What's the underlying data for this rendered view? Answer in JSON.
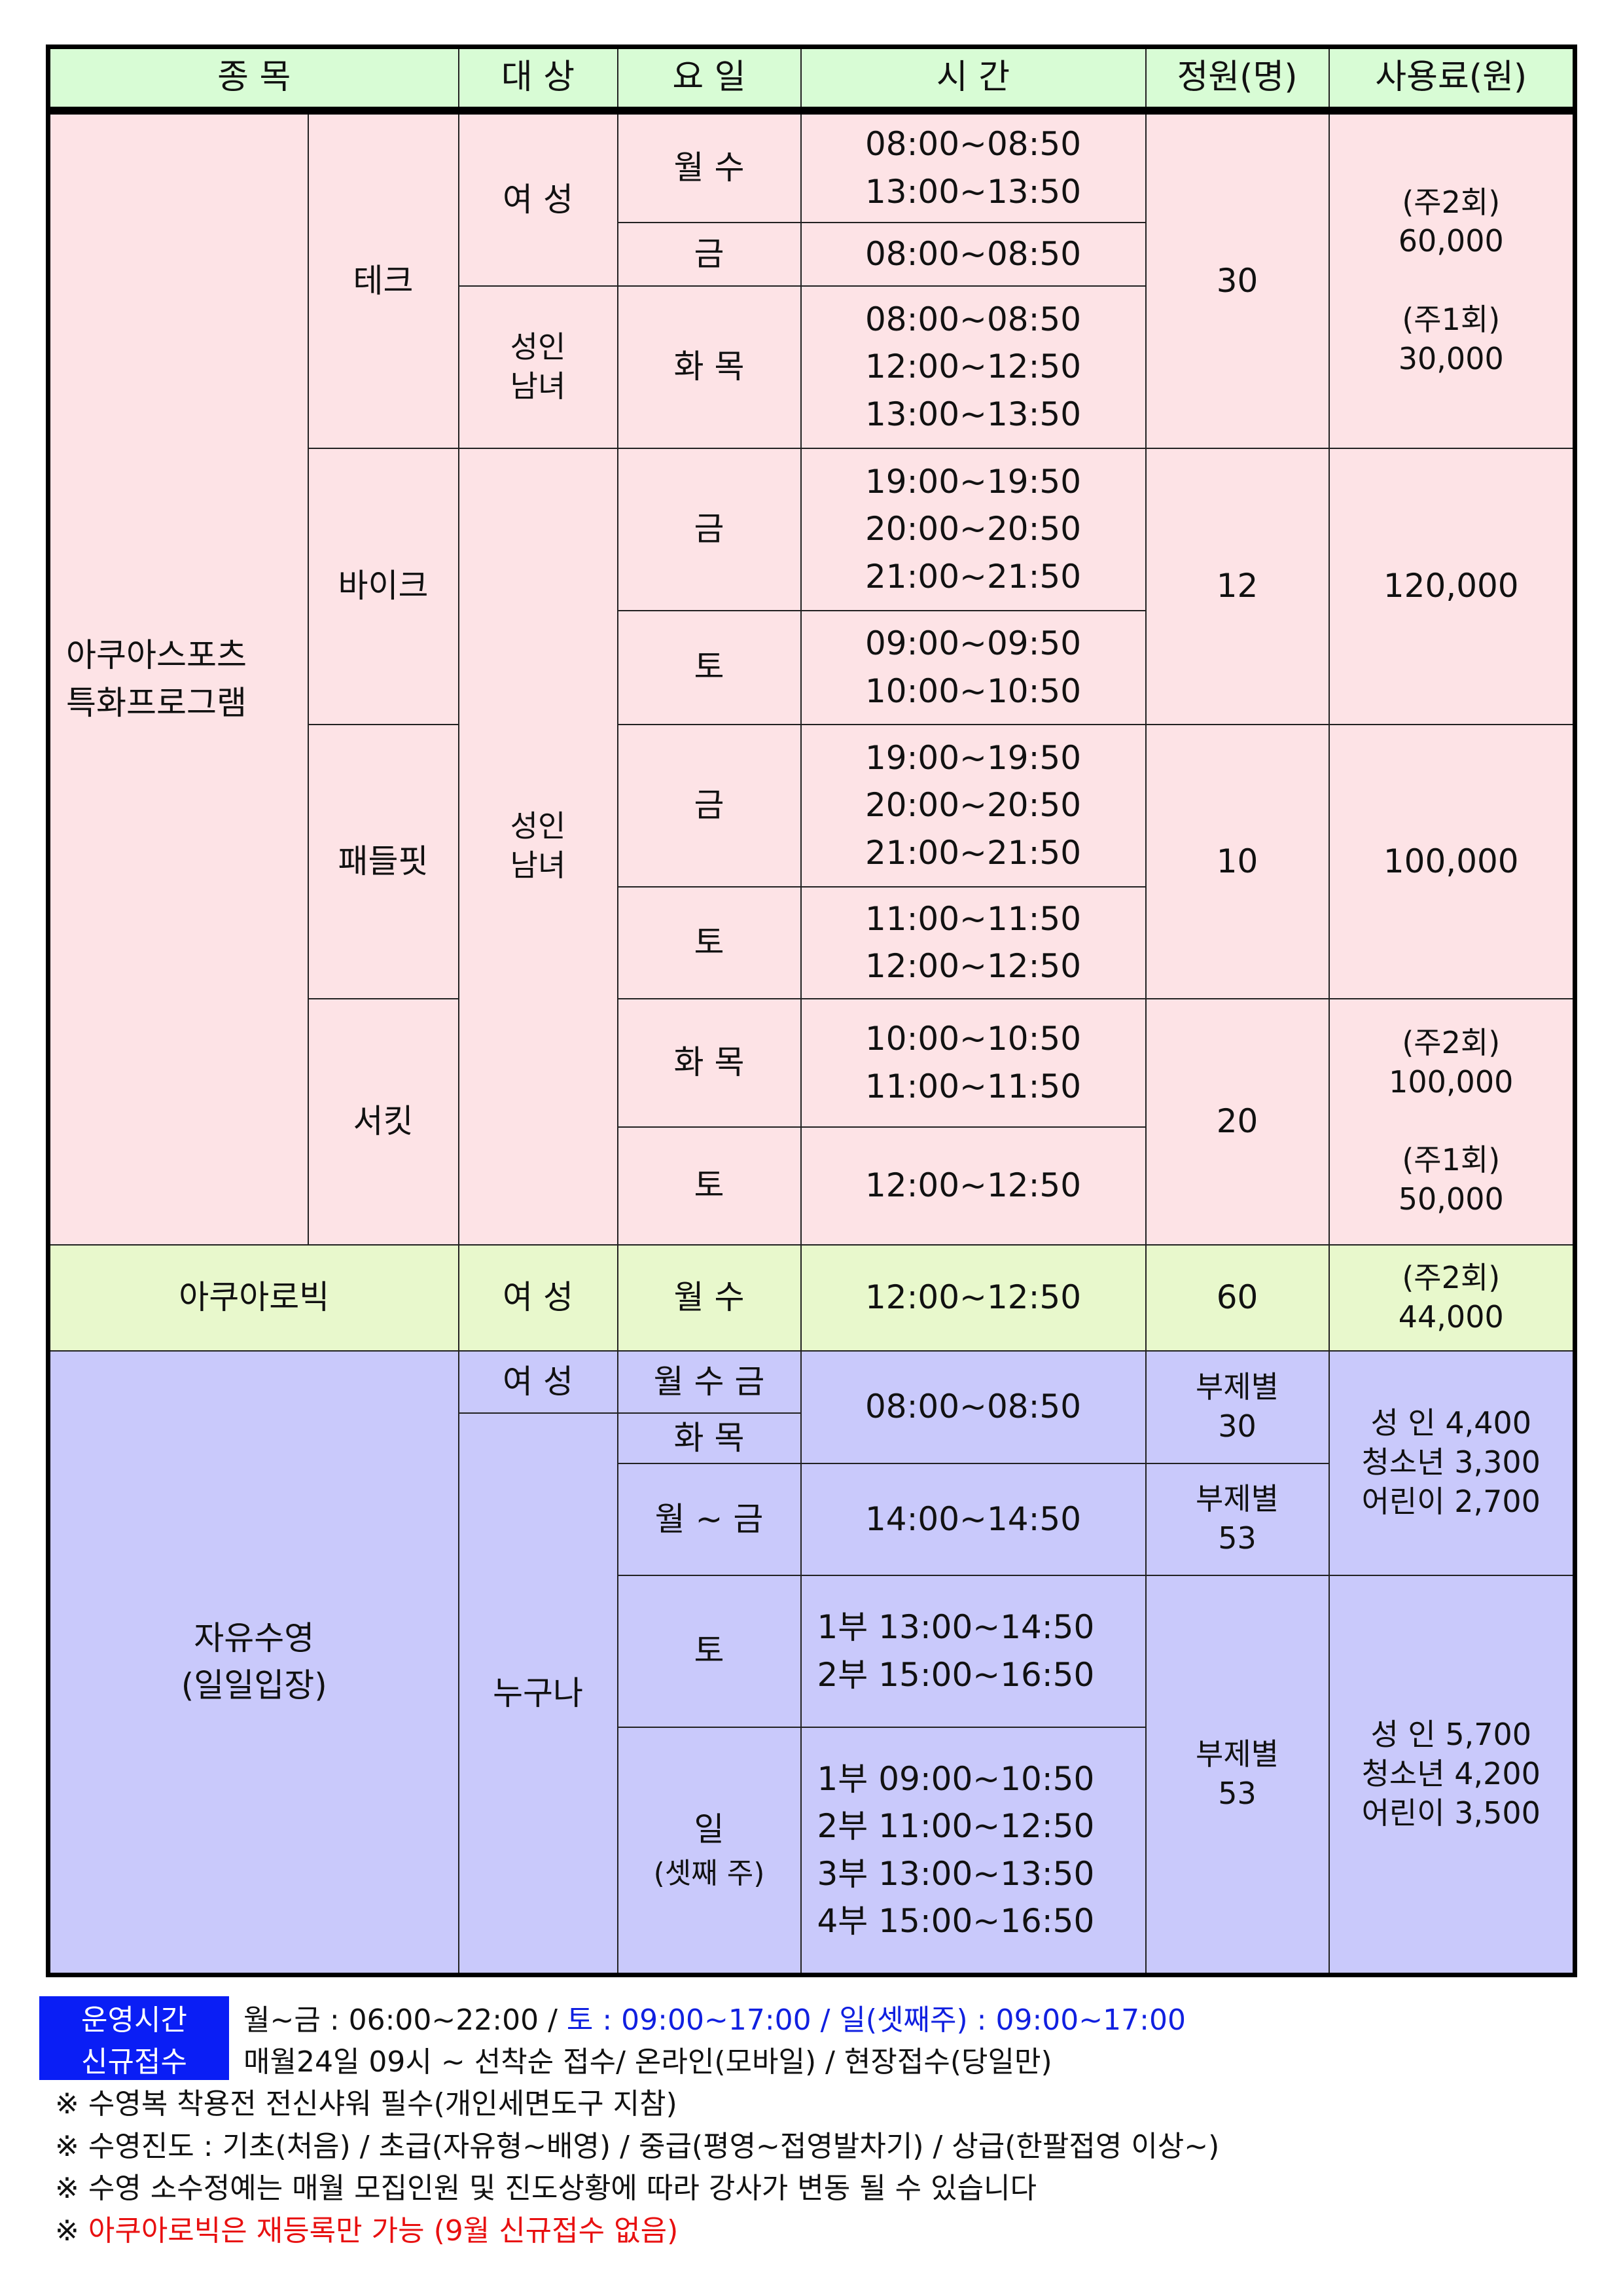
{
  "header": {
    "event": "종   목",
    "target": "대  상",
    "day": "요  일",
    "time": "시  간",
    "capacity": "정원(명)",
    "fee": "사용료(원)"
  },
  "aqua_sports": {
    "name": "아쿠아스포츠\n특화프로그램",
    "tech": {
      "name": "테크",
      "women": "여 성",
      "adults": "성인\n남녀",
      "rows": [
        {
          "day": "월  수",
          "time": "08:00~08:50\n13:00~13:50"
        },
        {
          "day": "금",
          "time": "08:00~08:50"
        },
        {
          "day": "화  목",
          "time": "08:00~08:50\n12:00~12:50\n13:00~13:50"
        }
      ],
      "capacity": "30",
      "fee": "(주2회)\n60,000\n\n(주1회)\n30,000"
    },
    "adults": "성인\n남녀",
    "bike": {
      "name": "바이크",
      "rows": [
        {
          "day": "금",
          "time": "19:00~19:50\n20:00~20:50\n21:00~21:50"
        },
        {
          "day": "토",
          "time": "09:00~09:50\n10:00~10:50"
        }
      ],
      "capacity": "12",
      "fee": "120,000"
    },
    "paddle": {
      "name": "패들핏",
      "rows": [
        {
          "day": "금",
          "time": "19:00~19:50\n20:00~20:50\n21:00~21:50"
        },
        {
          "day": "토",
          "time": "11:00~11:50\n12:00~12:50"
        }
      ],
      "capacity": "10",
      "fee": "100,000"
    },
    "circuit": {
      "name": "서킷",
      "rows": [
        {
          "day": "화  목",
          "time": "10:00~10:50\n11:00~11:50"
        },
        {
          "day": "토",
          "time": "12:00~12:50"
        }
      ],
      "capacity": "20",
      "fee": "(주2회)\n100,000\n\n(주1회)\n50,000"
    }
  },
  "aqua_aerobic": {
    "name": "아쿠아로빅",
    "target": "여 성",
    "day": "월  수",
    "time": "12:00~12:50",
    "capacity": "60",
    "fee": "(주2회)\n44,000"
  },
  "free_swim": {
    "name": "자유수영\n(일일입장)",
    "women": "여 성",
    "anyone": "누구나",
    "weekday": {
      "day_women": "월 수 금",
      "day_anyone": "화   목",
      "time_morning": "08:00~08:50",
      "cap_morning": "부제별\n30",
      "day_afternoon": "월 ~ 금",
      "time_afternoon": "14:00~14:50",
      "cap_afternoon": "부제별\n53",
      "fee": "성   인 4,400\n청소년 3,300\n어린이 2,700"
    },
    "weekend": {
      "sat_day": "토",
      "sat_time": "1부  13:00~14:50\n2부  15:00~16:50",
      "sun_day": "일",
      "sun_note": "(셋째 주)",
      "sun_time": "1부  09:00~10:50\n2부  11:00~12:50\n3부  13:00~13:50\n4부  15:00~16:50",
      "capacity": "부제별\n53",
      "fee": "성   인 5,700\n청소년 4,200\n어린이 3,500"
    }
  },
  "footer": {
    "hours_label": "운영시간",
    "hours_weekday": "월~금 : 06:00~22:00 / ",
    "hours_weekend": "토 : 09:00~17:00 / 일(셋째주) : 09:00~17:00",
    "register_label": "신규접수",
    "register_text": "매월24일 09시 ~ 선착순 접수/ 온라인(모바일) / 현장접수(당일만)",
    "notes": [
      "※ 수영복 착용전 전신샤워 필수(개인세면도구 지참)",
      "※ 수영진도 : 기초(처음) / 초급(자유형~배영) / 중급(평영~접영발차기) / 상급(한팔접영 이상~)",
      "※ 수영 소수정예는 매월 모집인원 및 진도상황에 따라 강사가 변동 될 수 있습니다"
    ],
    "red_note_mark": "※ ",
    "red_note": "아쿠아로빅은 재등록만 가능 (9월 신규접수 없음)"
  },
  "colors": {
    "header": "#d8fcd5",
    "aqua_sports": "#fde3e6",
    "aqua_aerobic": "#e8f8cc",
    "free_swim": "#c9c9fb",
    "label_bg": "#0a1ef5",
    "highlight_blue": "#1020e0",
    "warning_red": "#e81010"
  }
}
